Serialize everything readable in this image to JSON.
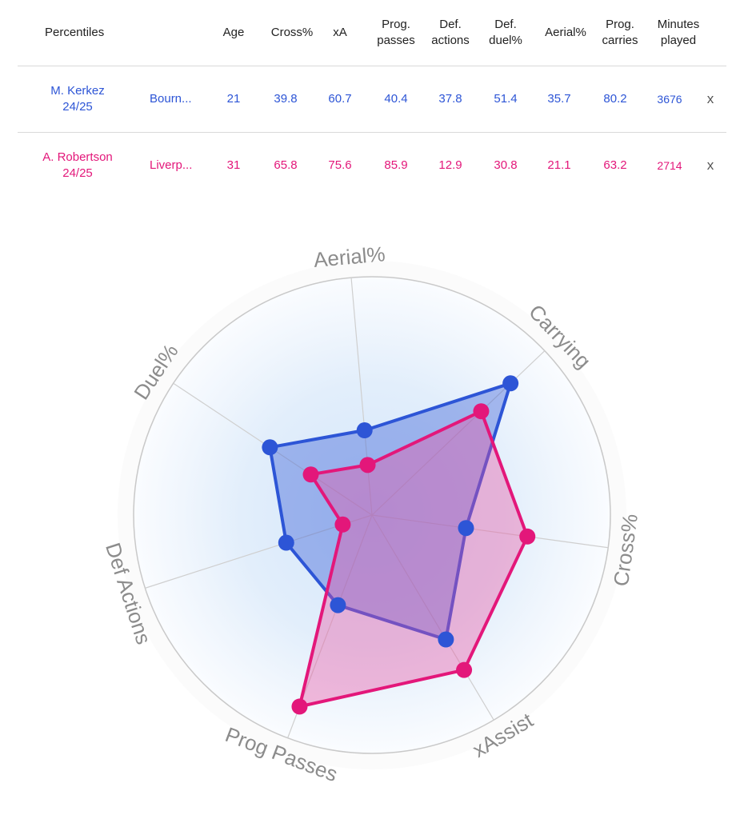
{
  "table": {
    "headers": [
      "Percentiles",
      "Age",
      "Cross%",
      "xA",
      "Prog.\npasses",
      "Def.\nactions",
      "Def.\nduel%",
      "Aerial%",
      "Prog.\ncarries",
      "Minutes\nplayed"
    ],
    "rows": [
      {
        "player": "M. Kerkez\n24/25",
        "team": "Bourn...",
        "values": [
          "21",
          "39.8",
          "60.7",
          "40.4",
          "37.8",
          "51.4",
          "35.7",
          "80.2",
          "3676"
        ],
        "remove": "x",
        "color": "#2d55d6"
      },
      {
        "player": "A. Robertson\n24/25",
        "team": "Liverp...",
        "values": [
          "31",
          "65.8",
          "75.6",
          "85.9",
          "12.9",
          "30.8",
          "21.1",
          "63.2",
          "2714"
        ],
        "remove": "x",
        "color": "#e3177a"
      }
    ]
  },
  "chart_data": {
    "type": "radar",
    "axes": [
      "Aerial%",
      "Carrying",
      "Cross%",
      "xAssist",
      "Prog Passes",
      "Def Actions",
      "Duel%"
    ],
    "range": [
      0,
      100
    ],
    "series": [
      {
        "name": "M. Kerkez 24/25",
        "values": [
          35.7,
          80.2,
          39.8,
          60.7,
          40.4,
          37.8,
          51.4
        ],
        "color": "#2d55d6",
        "fill": "rgba(45,85,214,0.38)"
      },
      {
        "name": "A. Robertson 24/25",
        "values": [
          21.1,
          63.2,
          65.8,
          75.6,
          85.9,
          12.9,
          30.8
        ],
        "color": "#e3177a",
        "fill": "rgba(233,80,160,0.38)"
      }
    ]
  }
}
